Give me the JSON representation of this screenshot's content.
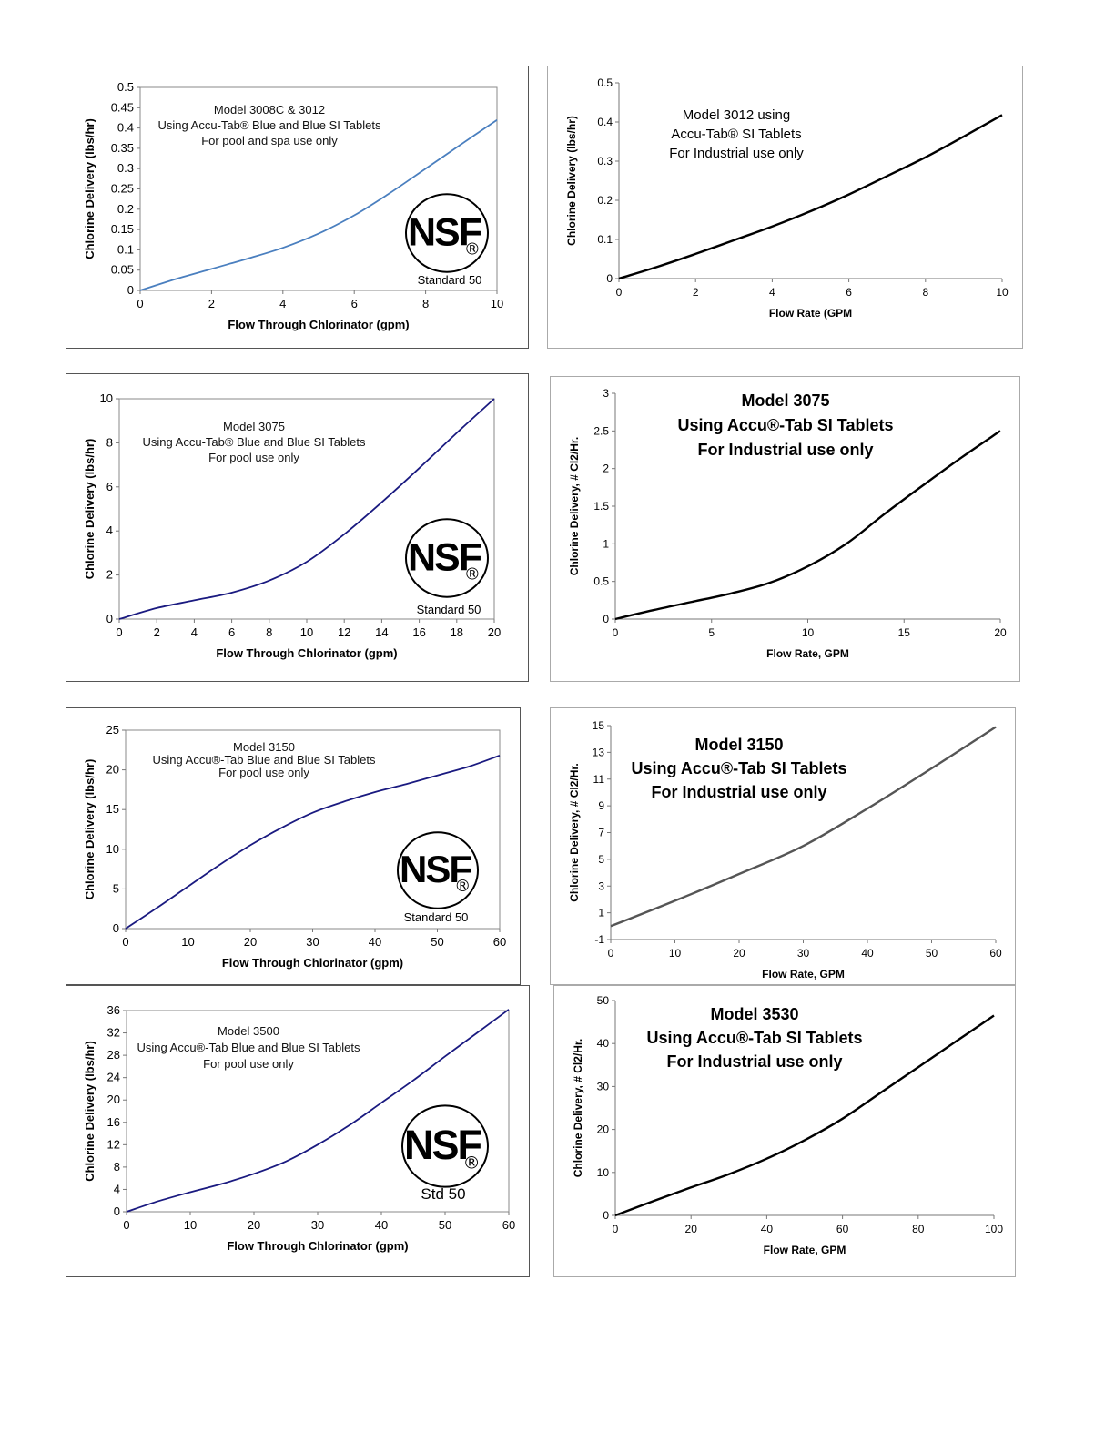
{
  "chart_data": [
    {
      "type": "line",
      "annotation": [
        "Model 3008C & 3012",
        "Using Accu-Tab® Blue and Blue SI Tablets",
        "For pool and spa use only"
      ],
      "xlabel": "Flow Through Chlorinator (gpm)",
      "ylabel": "Chlorine Delivery (lbs/hr)",
      "xlim": [
        0,
        10
      ],
      "ylim": [
        0,
        0.5
      ],
      "xticks": [
        "0",
        "2",
        "4",
        "6",
        "8",
        "10"
      ],
      "yticks": [
        "0",
        "0.05",
        "0.1",
        "0.15",
        "0.2",
        "0.25",
        "0.3",
        "0.35",
        "0.4",
        "0.45",
        "0.5"
      ],
      "line_color": "#4a7fbf",
      "x": [
        0,
        1,
        2,
        3,
        4,
        5,
        6,
        7,
        8,
        9,
        10
      ],
      "y": [
        0,
        0.028,
        0.053,
        0.078,
        0.105,
        0.14,
        0.185,
        0.24,
        0.3,
        0.36,
        0.42
      ],
      "badge": {
        "logo": "NSF",
        "mark": "®",
        "caption": "Standard 50"
      }
    },
    {
      "type": "line",
      "annotation": [
        "Model 3012 using",
        "Accu-Tab® SI Tablets",
        "For Industrial use only"
      ],
      "xlabel": "Flow Rate (GPM",
      "ylabel": "Chlorine Delivery (lbs/hr)",
      "xlim": [
        0,
        10
      ],
      "ylim": [
        0,
        0.5
      ],
      "xticks": [
        "0",
        "2",
        "4",
        "6",
        "8",
        "10"
      ],
      "yticks": [
        "0",
        "0.1",
        "0.2",
        "0.3",
        "0.4",
        "0.5"
      ],
      "line_color": "#000000",
      "x": [
        0,
        1,
        2,
        3,
        4,
        5,
        6,
        7,
        8,
        9,
        10
      ],
      "y": [
        0,
        0.03,
        0.063,
        0.098,
        0.133,
        0.172,
        0.215,
        0.262,
        0.31,
        0.363,
        0.418
      ]
    },
    {
      "type": "line",
      "annotation": [
        "Model 3075",
        "Using Accu-Tab® Blue and Blue SI Tablets",
        "For pool use only"
      ],
      "xlabel": "Flow Through Chlorinator (gpm)",
      "ylabel": "Chlorine Delivery (lbs/hr)",
      "xlim": [
        0,
        20
      ],
      "ylim": [
        0,
        10
      ],
      "xticks": [
        "0",
        "2",
        "4",
        "6",
        "8",
        "10",
        "12",
        "14",
        "16",
        "18",
        "20"
      ],
      "yticks": [
        "0",
        "2",
        "4",
        "6",
        "8",
        "10"
      ],
      "line_color": "#1a1a80",
      "x": [
        0,
        2,
        4,
        6,
        8,
        10,
        12,
        14,
        16,
        18,
        20
      ],
      "y": [
        0,
        0.5,
        0.85,
        1.2,
        1.75,
        2.6,
        3.85,
        5.3,
        6.85,
        8.45,
        10
      ],
      "badge": {
        "logo": "NSF",
        "mark": "®",
        "caption": "Standard 50"
      }
    },
    {
      "type": "line",
      "annotation": [
        "Model 3075",
        "Using Accu®-Tab SI Tablets",
        "For Industrial use only"
      ],
      "xlabel": "Flow Rate, GPM",
      "ylabel": "Chlorine Delivery, # Cl2/Hr.",
      "xlim": [
        0,
        20
      ],
      "ylim": [
        0,
        3
      ],
      "xticks": [
        "0",
        "5",
        "10",
        "15",
        "20"
      ],
      "yticks": [
        "0",
        "0.5",
        "1",
        "1.5",
        "2",
        "2.5",
        "3"
      ],
      "line_color": "#000000",
      "x": [
        0,
        2,
        4,
        6,
        8,
        10,
        12,
        14,
        16,
        18,
        20
      ],
      "y": [
        0,
        0.12,
        0.23,
        0.34,
        0.48,
        0.7,
        1.0,
        1.4,
        1.78,
        2.15,
        2.5
      ]
    },
    {
      "type": "line",
      "annotation": [
        "Model 3150",
        "Using Accu®-Tab Blue and Blue SI Tablets",
        "For pool use only"
      ],
      "xlabel": "Flow Through Chlorinator (gpm)",
      "ylabel": "Chlorine Delivery (lbs/hr)",
      "xlim": [
        0,
        60
      ],
      "ylim": [
        0,
        25
      ],
      "xticks": [
        "0",
        "10",
        "20",
        "30",
        "40",
        "50",
        "60"
      ],
      "yticks": [
        "0",
        "5",
        "10",
        "15",
        "20",
        "25"
      ],
      "line_color": "#1a1a80",
      "x": [
        0,
        5,
        10,
        15,
        20,
        25,
        30,
        35,
        40,
        45,
        50,
        55,
        60
      ],
      "y": [
        0,
        2.6,
        5.3,
        8.0,
        10.5,
        12.7,
        14.6,
        16.0,
        17.2,
        18.2,
        19.3,
        20.4,
        21.8
      ],
      "badge": {
        "logo": "NSF",
        "mark": "®",
        "caption": "Standard 50"
      }
    },
    {
      "type": "line",
      "annotation": [
        "Model 3150",
        "Using Accu®-Tab SI Tablets",
        "For Industrial use only"
      ],
      "xlabel": "Flow Rate, GPM",
      "ylabel": "Chlorine Delivery, # Cl2/Hr.",
      "xlim": [
        0,
        60
      ],
      "ylim": [
        -1,
        15
      ],
      "xticks": [
        "0",
        "10",
        "20",
        "30",
        "40",
        "50",
        "60"
      ],
      "yticks": [
        "-1",
        "1",
        "3",
        "5",
        "7",
        "9",
        "11",
        "13",
        "15"
      ],
      "line_color": "#555555",
      "x": [
        0,
        10,
        20,
        30,
        40,
        50,
        60
      ],
      "y": [
        0,
        1.9,
        3.9,
        6.0,
        8.8,
        11.8,
        14.9
      ]
    },
    {
      "type": "line",
      "annotation": [
        "Model 3500",
        "Using Accu®-Tab Blue and Blue SI Tablets",
        "For pool use only"
      ],
      "xlabel": "Flow Through Chlorinator (gpm)",
      "ylabel": "Chlorine Delivery (lbs/hr)",
      "xlim": [
        0,
        60
      ],
      "ylim": [
        0,
        36
      ],
      "xticks": [
        "0",
        "10",
        "20",
        "30",
        "40",
        "50",
        "60"
      ],
      "yticks": [
        "0",
        "4",
        "8",
        "12",
        "16",
        "20",
        "24",
        "28",
        "32",
        "36"
      ],
      "line_color": "#1a1a80",
      "x": [
        0,
        5,
        10,
        15,
        20,
        25,
        30,
        35,
        40,
        45,
        50,
        55,
        60
      ],
      "y": [
        0,
        1.9,
        3.5,
        5.0,
        6.8,
        9.0,
        12.0,
        15.5,
        19.5,
        23.5,
        27.8,
        32.0,
        36.2
      ],
      "badge": {
        "logo": "NSF",
        "mark": "®",
        "caption": "Std 50"
      }
    },
    {
      "type": "line",
      "annotation": [
        "Model 3530",
        "Using Accu®-Tab SI Tablets",
        "For Industrial use only"
      ],
      "xlabel": "Flow Rate, GPM",
      "ylabel": "Chlorine Delivery, # Cl2/Hr.",
      "xlim": [
        0,
        100
      ],
      "ylim": [
        0,
        50
      ],
      "xticks": [
        "0",
        "20",
        "40",
        "60",
        "80",
        "100"
      ],
      "yticks": [
        "0",
        "10",
        "20",
        "30",
        "40",
        "50"
      ],
      "line_color": "#000000",
      "x": [
        0,
        10,
        20,
        30,
        40,
        50,
        60,
        70,
        80,
        90,
        100
      ],
      "y": [
        0,
        3.3,
        6.5,
        9.6,
        13.2,
        17.5,
        22.5,
        28.5,
        34.5,
        40.5,
        46.5
      ]
    }
  ]
}
